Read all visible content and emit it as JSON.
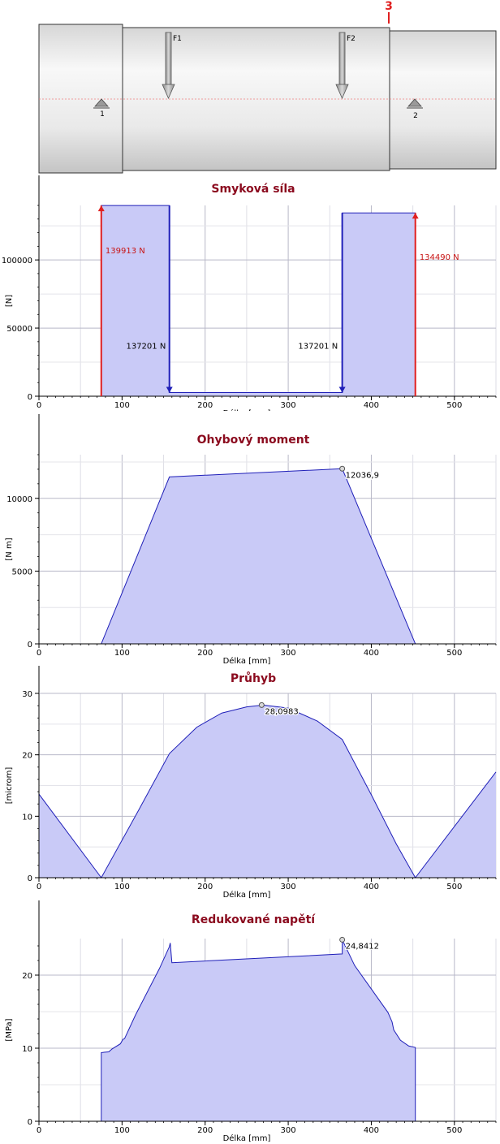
{
  "colors": {
    "fill": "#c9caf7",
    "line": "#1f1fb8",
    "reaction": "#e02020",
    "title": "#8b0a1e",
    "label_red": "#c81414"
  },
  "shaft": {
    "section_marker": "3",
    "forces": [
      {
        "label": "F1"
      },
      {
        "label": "F2"
      }
    ],
    "supports": [
      {
        "label": "1"
      },
      {
        "label": "2"
      }
    ]
  },
  "chart_data": [
    {
      "type": "area",
      "title": "Smyková síla",
      "xlabel": "Délka [mm]",
      "ylabel": "[N]",
      "xlim": [
        0,
        550
      ],
      "ylim": [
        0,
        140000
      ],
      "xticks": [
        0,
        100,
        200,
        300,
        400,
        500
      ],
      "yticks": [
        0,
        50000,
        100000
      ],
      "ytick_labels": [
        "0",
        "50000",
        "100000"
      ],
      "grid": true,
      "x": [
        0,
        75,
        75,
        157,
        157,
        365,
        365,
        453,
        453,
        550
      ],
      "y": [
        0,
        0,
        139913,
        139913,
        2712,
        2712,
        134490,
        134490,
        0,
        0
      ],
      "annotations": [
        {
          "text": "139913 N",
          "x": 80,
          "y": 105000,
          "color": "red"
        },
        {
          "text": "137201 N",
          "x": 105,
          "y": 35000,
          "color": "black"
        },
        {
          "text": "137201 N",
          "x": 312,
          "y": 35000,
          "color": "black"
        },
        {
          "text": "134490 N",
          "x": 458,
          "y": 100000,
          "color": "red"
        }
      ]
    },
    {
      "type": "area",
      "title": "Ohybový moment",
      "xlabel": "Délka [mm]",
      "ylabel": "[N m]",
      "xlim": [
        0,
        550
      ],
      "ylim": [
        0,
        13000
      ],
      "xticks": [
        0,
        100,
        200,
        300,
        400,
        500
      ],
      "xtick_labels": [
        "0",
        "100",
        "200",
        "300",
        "400",
        "500"
      ],
      "yticks": [
        0,
        5000,
        10000
      ],
      "ytick_labels": [
        "0",
        "5000",
        "10000"
      ],
      "grid": true,
      "x": [
        0,
        75,
        157,
        365,
        453,
        550
      ],
      "y": [
        0,
        0,
        11472,
        12037,
        0,
        0
      ],
      "peak": {
        "x": 365,
        "y": 12036.9,
        "label": "12036,9"
      }
    },
    {
      "type": "area",
      "title": "Průhyb",
      "xlabel": "Délka [mm]",
      "ylabel": "[microm]",
      "xlim": [
        0,
        550
      ],
      "ylim": [
        0,
        30
      ],
      "xticks": [
        0,
        100,
        200,
        300,
        400,
        500
      ],
      "xtick_labels": [
        "0",
        "100",
        "200",
        "300",
        "400",
        "500"
      ],
      "yticks": [
        0,
        10,
        20,
        30
      ],
      "ytick_labels": [
        "0",
        "10",
        "20",
        "30"
      ],
      "grid": true,
      "x": [
        0,
        75,
        120,
        157,
        190,
        220,
        250,
        270,
        300,
        335,
        365,
        400,
        430,
        453,
        550
      ],
      "y": [
        13.6,
        0,
        11,
        20.2,
        24.5,
        26.8,
        27.8,
        28.1,
        27.6,
        25.5,
        22.5,
        13.5,
        5.5,
        0,
        17.2
      ],
      "peak": {
        "x": 268,
        "y": 28.0983,
        "label": "28,0983"
      }
    },
    {
      "type": "area",
      "title": "Redukované napětí",
      "xlabel": "Délka [mm]",
      "ylabel": "[MPa]",
      "xlim": [
        0,
        550
      ],
      "ylim": [
        0,
        25
      ],
      "xticks": [
        0,
        100,
        200,
        300,
        400,
        500
      ],
      "xtick_labels": [
        "0",
        "100",
        "200",
        "300",
        "400",
        "500"
      ],
      "yticks": [
        0,
        10,
        20
      ],
      "ytick_labels": [
        "0",
        "10",
        "20"
      ],
      "grid": true,
      "x": [
        0,
        75,
        75,
        84,
        88,
        98,
        101,
        103,
        116,
        130,
        145,
        157,
        158,
        160,
        160,
        365,
        365,
        380,
        400,
        420,
        425,
        427,
        435,
        445,
        453,
        453,
        550
      ],
      "y": [
        0,
        0,
        9.4,
        9.5,
        9.9,
        10.6,
        11.2,
        11.3,
        14.5,
        17.6,
        20.9,
        23.9,
        24.4,
        21.7,
        21.7,
        22.9,
        24.84,
        21.3,
        18.1,
        14.9,
        13.6,
        12.5,
        11.1,
        10.3,
        10.1,
        0,
        0
      ],
      "peak": {
        "x": 365,
        "y": 24.8412,
        "label": "24,8412"
      }
    }
  ]
}
